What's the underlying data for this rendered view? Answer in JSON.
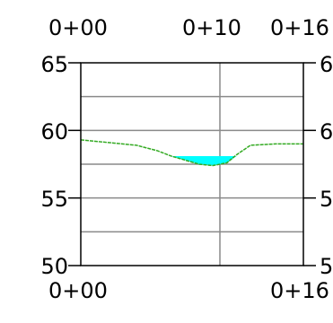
{
  "chart_data": {
    "type": "area",
    "title": "",
    "xlabel": "",
    "ylabel": "",
    "xlim": [
      0,
      16
    ],
    "ylim": [
      50,
      65
    ],
    "grid": true,
    "x_ticks": [
      {
        "value": 0,
        "label": "0+00"
      },
      {
        "value": 10,
        "label": "0+10"
      },
      {
        "value": 16,
        "label": "0+16"
      }
    ],
    "y_ticks": [
      {
        "value": 50,
        "label": "50"
      },
      {
        "value": 55,
        "label": "55"
      },
      {
        "value": 60,
        "label": "60"
      },
      {
        "value": 65,
        "label": "65"
      }
    ],
    "top_labels": [
      "0+00",
      "0+10",
      "0+16"
    ],
    "bottom_labels": [
      "0+00",
      "0+16"
    ],
    "left_labels": [
      "65",
      "60",
      "55",
      "50"
    ],
    "right_labels": [
      "6",
      "6",
      "5",
      "5"
    ],
    "ground_profile": {
      "color": "#33aa22",
      "points": [
        [
          0,
          59.3
        ],
        [
          2,
          59.1
        ],
        [
          4,
          58.9
        ],
        [
          5.5,
          58.5
        ],
        [
          6.5,
          58.1
        ],
        [
          7.5,
          57.8
        ],
        [
          8.5,
          57.5
        ],
        [
          9.5,
          57.4
        ],
        [
          10.5,
          57.6
        ],
        [
          11.2,
          58.2
        ],
        [
          12.2,
          58.9
        ],
        [
          14,
          59.0
        ],
        [
          16,
          59.0
        ]
      ]
    },
    "water": {
      "color": "#00ffff",
      "level": 58.1,
      "x_range": [
        6.5,
        11.2
      ]
    }
  }
}
